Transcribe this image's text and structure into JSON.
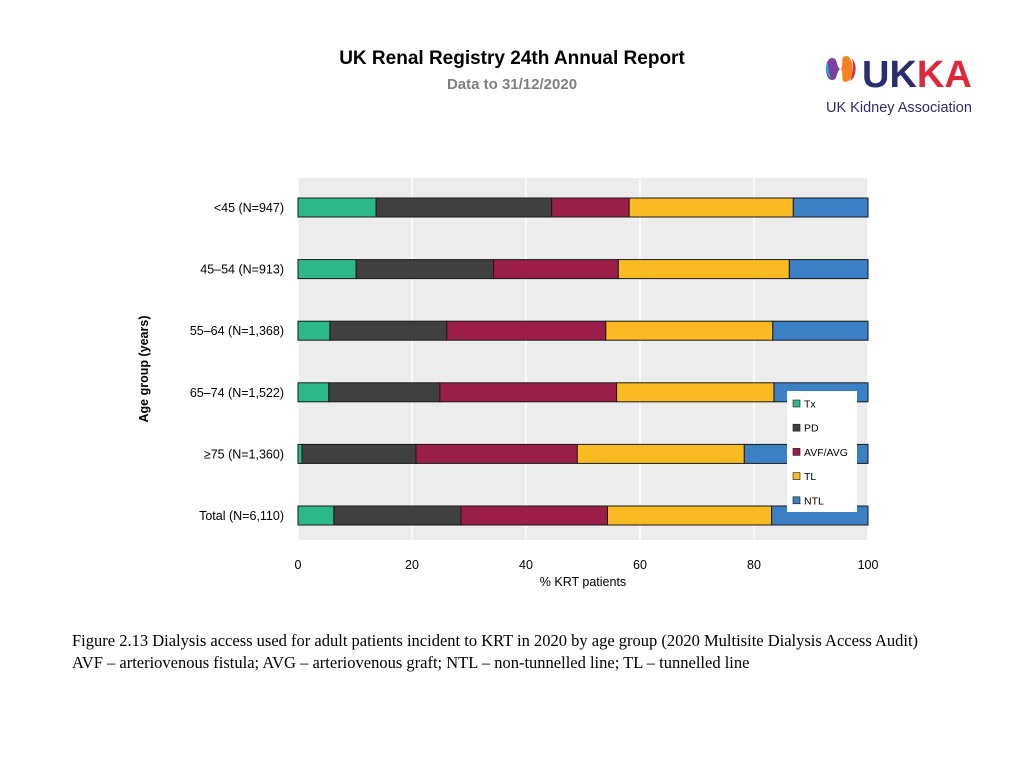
{
  "header": {
    "title": "UK Renal Registry 24th Annual Report",
    "subtitle": "Data to 31/12/2020"
  },
  "logo": {
    "wordmark": "UKKA",
    "name": "UK Kidney Association",
    "colors": {
      "navy": "#2b2e6e",
      "red": "#e0283b",
      "orange": "#f58220",
      "purple": "#7b3fa0",
      "teal": "#1bb0d8"
    }
  },
  "caption": {
    "line1": "Figure 2.13 Dialysis access used for adult patients incident to KRT in 2020 by age group (2020 Multisite Dialysis Access Audit)",
    "line2": "AVF – arteriovenous fistula; AVG – arteriovenous graft; NTL – non-tunnelled line; TL – tunnelled line"
  },
  "chart_data": {
    "type": "bar",
    "orientation": "horizontal-stacked",
    "xlabel": "% KRT patients",
    "ylabel": "Age group (years)",
    "xlim": [
      0,
      100
    ],
    "xticks": [
      0,
      20,
      40,
      60,
      80,
      100
    ],
    "legend_position": "right",
    "categories": [
      "<45 (N=947)",
      "45–54  (N=913)",
      "55–64 (N=1,368)",
      "65–74 (N=1,522)",
      "≥75 (N=1,360)",
      "Total (N=6,110)"
    ],
    "series": [
      {
        "name": "Tx",
        "color": "#2db88a",
        "values": [
          13.7,
          10.2,
          5.6,
          5.4,
          0.7,
          6.3
        ]
      },
      {
        "name": "PD",
        "color": "#404040",
        "values": [
          30.8,
          24.1,
          20.5,
          19.5,
          20.0,
          22.3
        ]
      },
      {
        "name": "AVF/AVG",
        "color": "#9b1e48",
        "values": [
          13.6,
          21.9,
          27.9,
          31.0,
          28.3,
          25.7
        ]
      },
      {
        "name": "TL",
        "color": "#f9bb21",
        "values": [
          28.8,
          30.0,
          29.3,
          27.6,
          29.3,
          28.8
        ]
      },
      {
        "name": "NTL",
        "color": "#3b7fc4",
        "values": [
          13.1,
          13.8,
          16.7,
          16.5,
          21.7,
          16.9
        ]
      }
    ]
  }
}
